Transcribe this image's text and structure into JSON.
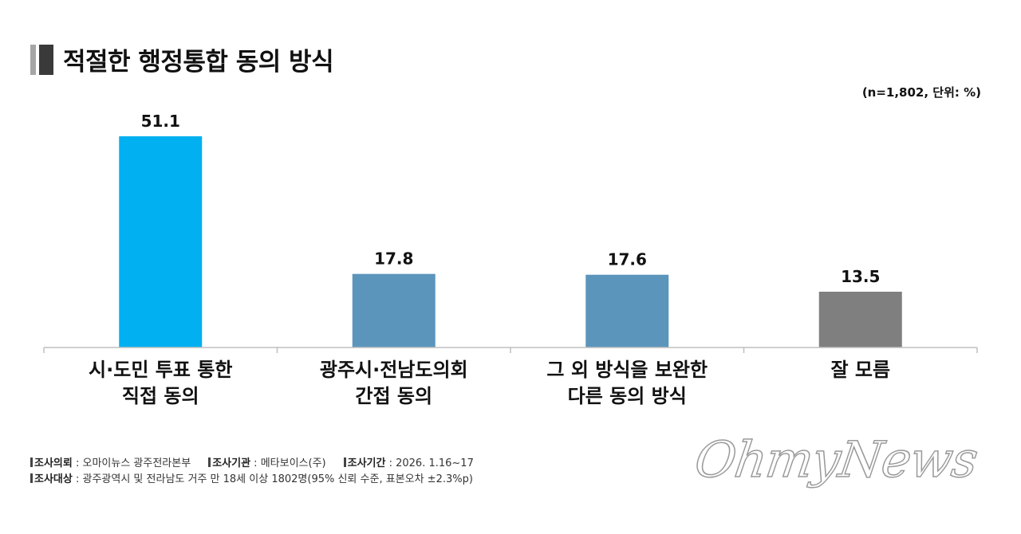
{
  "title": "적절한 행정통합 동의 방식",
  "unit_note": "(n=1,802, 단위: %)",
  "chart_data": {
    "type": "bar",
    "categories": [
      [
        "시·도민 투표 통한",
        "직접 동의"
      ],
      [
        "광주시·전남도의회",
        "간접 동의"
      ],
      [
        "그 외 방식을 보완한",
        "다른 동의 방식"
      ],
      [
        "잘 모름"
      ]
    ],
    "values": [
      51.1,
      17.8,
      17.6,
      13.5
    ],
    "value_labels": [
      "51.1",
      "17.8",
      "17.6",
      "13.5"
    ],
    "colors": [
      "#00b0f0",
      "#5b95bb",
      "#5b95bb",
      "#7f7f7f"
    ],
    "ylim": [
      0,
      51.1
    ],
    "grid": false
  },
  "footer": {
    "line1": [
      {
        "label": "조사의뢰",
        "value": "오마이뉴스 광주전라본부"
      },
      {
        "label": "조사기관",
        "value": "메타보이스(주)"
      },
      {
        "label": "조사기간",
        "value": "2026. 1.16~17"
      }
    ],
    "line2": [
      {
        "label": "조사대상",
        "value": "광주광역시 및 전라남도 거주 만 18세 이상 1802명(95% 신뢰 수준, 표본오차 ±2.3%p)"
      }
    ]
  },
  "watermark": "OhmyNews"
}
